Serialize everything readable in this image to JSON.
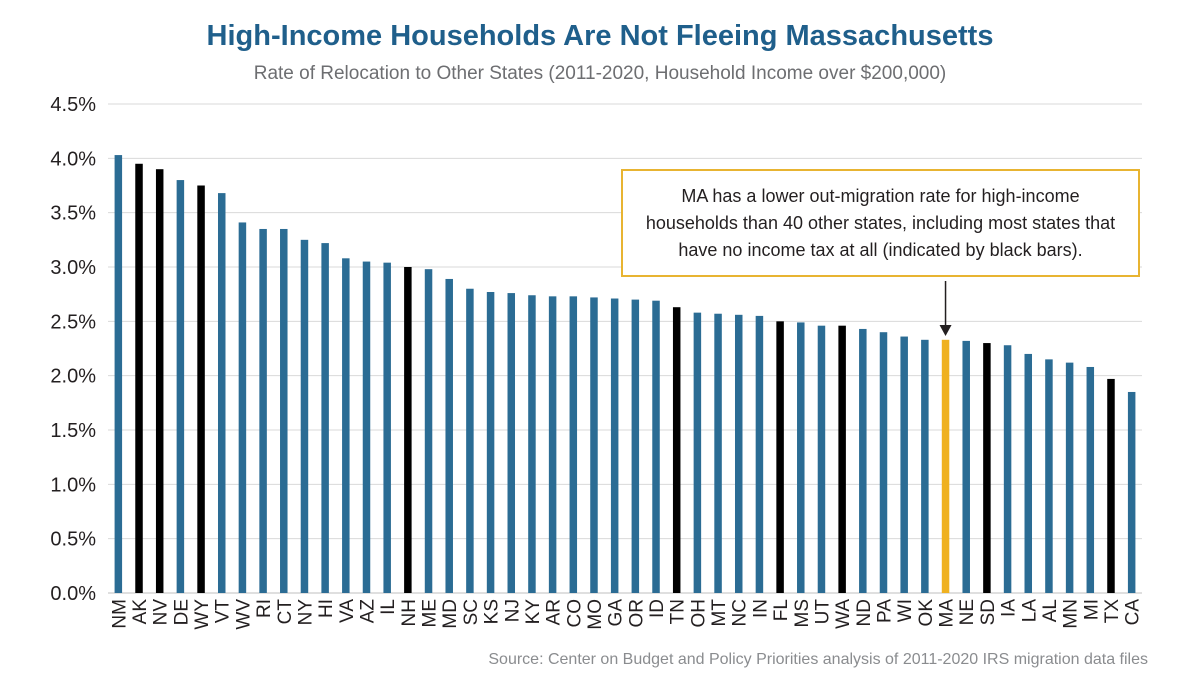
{
  "chart_data": {
    "type": "bar",
    "title": "High-Income Households Are Not Fleeing Massachusetts",
    "subtitle": "Rate of Relocation to Other States (2011-2020, Household Income over $200,000)",
    "xlabel": "",
    "ylabel": "",
    "ylim": [
      0,
      4.5
    ],
    "yticks": [
      "0.0%",
      "0.5%",
      "1.0%",
      "1.5%",
      "2.0%",
      "2.5%",
      "3.0%",
      "3.5%",
      "4.0%",
      "4.5%"
    ],
    "grid": true,
    "categories": [
      "NM",
      "AK",
      "NV",
      "DE",
      "WY",
      "VT",
      "WV",
      "RI",
      "CT",
      "NY",
      "HI",
      "VA",
      "AZ",
      "IL",
      "NH",
      "ME",
      "MD",
      "SC",
      "KS",
      "NJ",
      "KY",
      "AR",
      "CO",
      "MO",
      "GA",
      "OR",
      "ID",
      "TN",
      "OH",
      "MT",
      "NC",
      "IN",
      "FL",
      "MS",
      "UT",
      "WA",
      "ND",
      "PA",
      "WI",
      "OK",
      "MA",
      "NE",
      "SD",
      "IA",
      "LA",
      "AL",
      "MN",
      "MI",
      "TX",
      "CA"
    ],
    "values": [
      4.03,
      3.95,
      3.9,
      3.8,
      3.75,
      3.68,
      3.41,
      3.35,
      3.35,
      3.25,
      3.22,
      3.08,
      3.05,
      3.04,
      3.0,
      2.98,
      2.89,
      2.8,
      2.77,
      2.76,
      2.74,
      2.73,
      2.73,
      2.72,
      2.71,
      2.7,
      2.69,
      2.63,
      2.58,
      2.57,
      2.56,
      2.55,
      2.5,
      2.49,
      2.46,
      2.46,
      2.43,
      2.4,
      2.36,
      2.33,
      2.33,
      2.32,
      2.3,
      2.28,
      2.2,
      2.15,
      2.12,
      2.08,
      1.97,
      1.85
    ],
    "no_income_tax_states": [
      "AK",
      "NV",
      "WY",
      "NH",
      "TN",
      "FL",
      "WA",
      "SD",
      "TX"
    ],
    "highlight": "MA",
    "colors": {
      "default": "#2b6c94",
      "no_income_tax": "#000000",
      "highlight": "#efb120",
      "grid": "#d9d9d9"
    },
    "annotation": "MA has a lower out-migration rate for high-income households than 40 other states, including most states that have no income tax at all (indicated by black bars).",
    "source": "Source: Center on Budget and Policy Priorities analysis of 2011-2020 IRS migration data files"
  }
}
